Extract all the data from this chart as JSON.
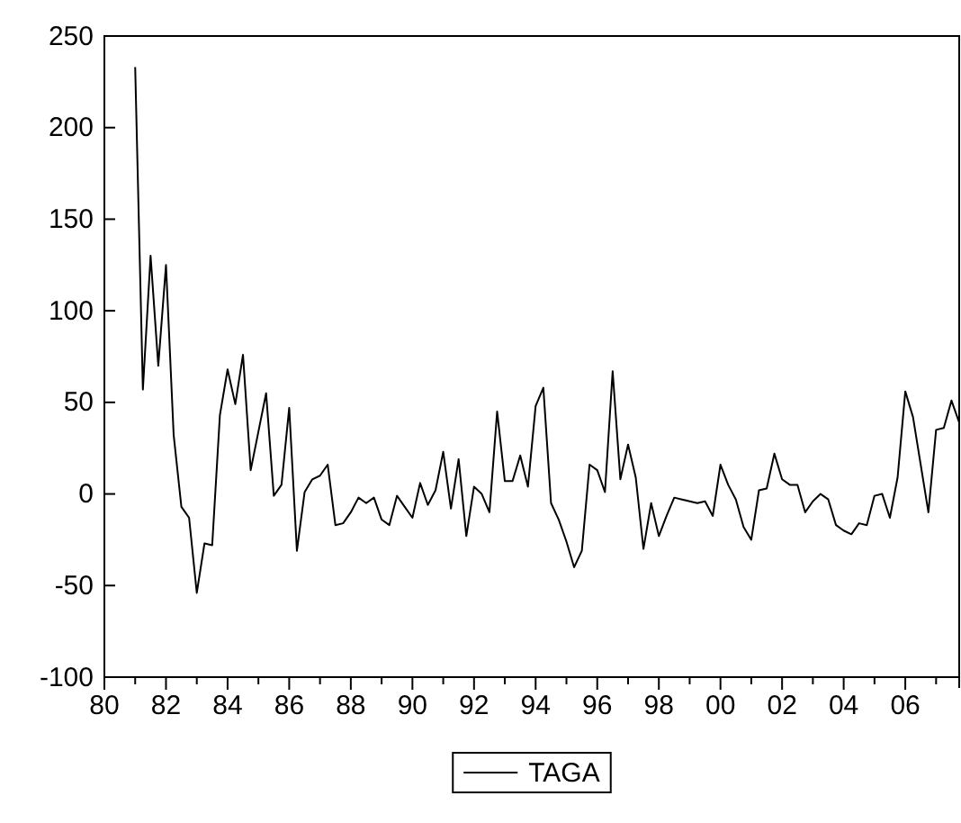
{
  "chart_data": {
    "type": "line",
    "legend": "bottom",
    "grid": false,
    "marker": "none",
    "line_style": "solid",
    "x": [
      1981,
      1981.25,
      1981.5,
      1981.75,
      1982,
      1982.25,
      1982.5,
      1982.75,
      1983,
      1983.25,
      1983.5,
      1983.75,
      1984,
      1984.25,
      1984.5,
      1984.75,
      1985,
      1985.25,
      1985.5,
      1985.75,
      1986,
      1986.25,
      1986.5,
      1986.75,
      1987,
      1987.25,
      1987.5,
      1987.75,
      1988,
      1988.25,
      1988.5,
      1988.75,
      1989,
      1989.25,
      1989.5,
      1989.75,
      1990,
      1990.25,
      1990.5,
      1990.75,
      1991,
      1991.25,
      1991.5,
      1991.75,
      1992,
      1992.25,
      1992.5,
      1992.75,
      1993,
      1993.25,
      1993.5,
      1993.75,
      1994,
      1994.25,
      1994.5,
      1994.75,
      1995,
      1995.25,
      1995.5,
      1995.75,
      1996,
      1996.25,
      1996.5,
      1996.75,
      1997,
      1997.25,
      1997.5,
      1997.75,
      1998,
      1998.25,
      1998.5,
      1998.75,
      1999,
      1999.25,
      1999.5,
      1999.75,
      2000,
      2000.25,
      2000.5,
      2000.75,
      2001,
      2001.25,
      2001.5,
      2001.75,
      2002,
      2002.25,
      2002.5,
      2002.75,
      2003,
      2003.25,
      2003.5,
      2003.75,
      2004,
      2004.25,
      2004.5,
      2004.75,
      2005,
      2005.25,
      2005.5,
      2005.75,
      2006,
      2006.25,
      2006.5,
      2006.75,
      2007,
      2007.25,
      2007.5,
      2007.75
    ],
    "series": [
      {
        "name": "TAGA",
        "color": "#000000",
        "values": [
          233,
          57,
          130,
          70,
          125,
          32,
          -7,
          -13,
          -54,
          -27,
          -28,
          43,
          68,
          49,
          76,
          13,
          34,
          55,
          -1,
          5,
          47,
          -31,
          1,
          8,
          10,
          16,
          -17,
          -16,
          -10,
          -2,
          -5,
          -2,
          -14,
          -17,
          -1,
          -7,
          -13,
          6,
          -6,
          2,
          23,
          -8,
          19,
          -23,
          4,
          0,
          -10,
          45,
          7,
          7,
          21,
          4,
          48,
          58,
          -5,
          -14,
          -26,
          -40,
          -31,
          16,
          13,
          1,
          67,
          8,
          27,
          9,
          -30,
          -5,
          -23,
          -12,
          -2,
          -3,
          -4,
          -5,
          -4,
          -12,
          16,
          5,
          -3,
          -18,
          -25,
          2,
          3,
          22,
          8,
          5,
          5,
          -10,
          -4,
          0,
          -3,
          -17,
          -20,
          -22,
          -16,
          -17,
          -1,
          0,
          -13,
          9,
          56,
          42,
          16,
          -10,
          35,
          36,
          51,
          39
        ]
      }
    ],
    "xlim": [
      1980,
      2007.75
    ],
    "xticks": [
      {
        "value": 1980,
        "label": "80"
      },
      {
        "value": 1981,
        "label": null
      },
      {
        "value": 1982,
        "label": "82"
      },
      {
        "value": 1983,
        "label": null
      },
      {
        "value": 1984,
        "label": "84"
      },
      {
        "value": 1985,
        "label": null
      },
      {
        "value": 1986,
        "label": "86"
      },
      {
        "value": 1987,
        "label": null
      },
      {
        "value": 1988,
        "label": "88"
      },
      {
        "value": 1989,
        "label": null
      },
      {
        "value": 1990,
        "label": "90"
      },
      {
        "value": 1991,
        "label": null
      },
      {
        "value": 1992,
        "label": "92"
      },
      {
        "value": 1993,
        "label": null
      },
      {
        "value": 1994,
        "label": "94"
      },
      {
        "value": 1995,
        "label": null
      },
      {
        "value": 1996,
        "label": "96"
      },
      {
        "value": 1997,
        "label": null
      },
      {
        "value": 1998,
        "label": "98"
      },
      {
        "value": 1999,
        "label": null
      },
      {
        "value": 2000,
        "label": "00"
      },
      {
        "value": 2001,
        "label": null
      },
      {
        "value": 2002,
        "label": "02"
      },
      {
        "value": 2003,
        "label": null
      },
      {
        "value": 2004,
        "label": "04"
      },
      {
        "value": 2005,
        "label": null
      },
      {
        "value": 2006,
        "label": "06"
      },
      {
        "value": 2007,
        "label": null
      }
    ],
    "ylim": [
      -100,
      250
    ],
    "yticks": [
      -100,
      -50,
      0,
      50,
      100,
      150,
      200,
      250
    ]
  }
}
